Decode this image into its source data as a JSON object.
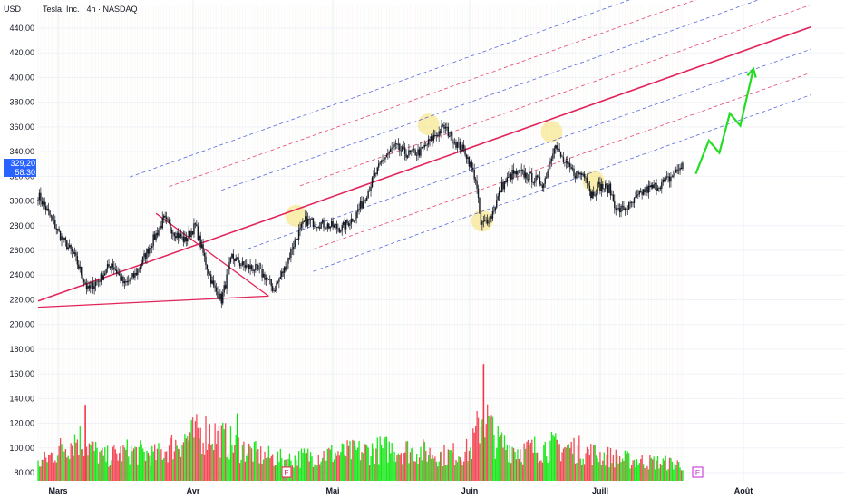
{
  "header": {
    "currency": "USD",
    "title": "Tesla, Inc. · 4h · NASDAQ"
  },
  "last_price": {
    "price": "329,20",
    "timer": "58:30",
    "color": "#2962ff"
  },
  "earnings_marker": "E",
  "colors": {
    "up": "#00e600",
    "down": "#f23645",
    "candle": "#131722",
    "trend": "#e2245a",
    "channel_red": "#e2245a",
    "channel_blue": "#3b4fd8",
    "forecast": "#22dd22",
    "highlight": "#f7e27a"
  },
  "chart_data": {
    "type": "candlestick",
    "x_ticks": [
      "Mars",
      "Avr",
      "Mai",
      "Juin",
      "Juill",
      "Août"
    ],
    "price_ticks": [
      "440,00",
      "420,00",
      "400,00",
      "380,00",
      "360,00",
      "340,00",
      "320,00",
      "300,00",
      "280,00",
      "260,00",
      "240,00",
      "220,00",
      "200,00",
      "180,00",
      "160,00",
      "140,00",
      "120,00",
      "100,00",
      "80,00"
    ],
    "ylim": [
      75,
      448
    ],
    "close_path": [
      {
        "t": 0,
        "v": 305
      },
      {
        "t": 8,
        "v": 290
      },
      {
        "t": 18,
        "v": 270
      },
      {
        "t": 28,
        "v": 255
      },
      {
        "t": 38,
        "v": 228
      },
      {
        "t": 48,
        "v": 238
      },
      {
        "t": 56,
        "v": 250
      },
      {
        "t": 66,
        "v": 232
      },
      {
        "t": 74,
        "v": 240
      },
      {
        "t": 86,
        "v": 265
      },
      {
        "t": 96,
        "v": 285
      },
      {
        "t": 104,
        "v": 275
      },
      {
        "t": 112,
        "v": 268
      },
      {
        "t": 120,
        "v": 280
      },
      {
        "t": 128,
        "v": 250
      },
      {
        "t": 134,
        "v": 230
      },
      {
        "t": 140,
        "v": 220
      },
      {
        "t": 148,
        "v": 255
      },
      {
        "t": 156,
        "v": 248
      },
      {
        "t": 166,
        "v": 245
      },
      {
        "t": 174,
        "v": 238
      },
      {
        "t": 180,
        "v": 228
      },
      {
        "t": 188,
        "v": 245
      },
      {
        "t": 196,
        "v": 268
      },
      {
        "t": 204,
        "v": 284
      },
      {
        "t": 214,
        "v": 282
      },
      {
        "t": 222,
        "v": 280
      },
      {
        "t": 232,
        "v": 278
      },
      {
        "t": 242,
        "v": 288
      },
      {
        "t": 248,
        "v": 300
      },
      {
        "t": 256,
        "v": 318
      },
      {
        "t": 264,
        "v": 335
      },
      {
        "t": 272,
        "v": 344
      },
      {
        "t": 282,
        "v": 338
      },
      {
        "t": 292,
        "v": 340
      },
      {
        "t": 302,
        "v": 352
      },
      {
        "t": 310,
        "v": 360
      },
      {
        "t": 318,
        "v": 348
      },
      {
        "t": 326,
        "v": 340
      },
      {
        "t": 334,
        "v": 318
      },
      {
        "t": 338,
        "v": 280
      },
      {
        "t": 346,
        "v": 288
      },
      {
        "t": 354,
        "v": 312
      },
      {
        "t": 362,
        "v": 322
      },
      {
        "t": 370,
        "v": 322
      },
      {
        "t": 378,
        "v": 318
      },
      {
        "t": 386,
        "v": 314
      },
      {
        "t": 394,
        "v": 346
      },
      {
        "t": 402,
        "v": 330
      },
      {
        "t": 410,
        "v": 322
      },
      {
        "t": 418,
        "v": 322
      },
      {
        "t": 422,
        "v": 305
      },
      {
        "t": 428,
        "v": 312
      },
      {
        "t": 436,
        "v": 310
      },
      {
        "t": 442,
        "v": 292
      },
      {
        "t": 452,
        "v": 296
      },
      {
        "t": 462,
        "v": 308
      },
      {
        "t": 472,
        "v": 312
      },
      {
        "t": 482,
        "v": 318
      },
      {
        "t": 492,
        "v": 329.2
      }
    ],
    "volume_profile": [
      {
        "t": 0,
        "v": 88
      },
      {
        "t": 30,
        "v": 112
      },
      {
        "t": 50,
        "v": 94
      },
      {
        "t": 70,
        "v": 100
      },
      {
        "t": 90,
        "v": 96
      },
      {
        "t": 110,
        "v": 110
      },
      {
        "t": 130,
        "v": 118
      },
      {
        "t": 150,
        "v": 105
      },
      {
        "t": 170,
        "v": 96
      },
      {
        "t": 190,
        "v": 92
      },
      {
        "t": 210,
        "v": 96
      },
      {
        "t": 230,
        "v": 98
      },
      {
        "t": 250,
        "v": 100
      },
      {
        "t": 270,
        "v": 102
      },
      {
        "t": 290,
        "v": 100
      },
      {
        "t": 310,
        "v": 96
      },
      {
        "t": 330,
        "v": 100
      },
      {
        "t": 340,
        "v": 135
      },
      {
        "t": 350,
        "v": 108
      },
      {
        "t": 370,
        "v": 100
      },
      {
        "t": 390,
        "v": 104
      },
      {
        "t": 410,
        "v": 102
      },
      {
        "t": 430,
        "v": 96
      },
      {
        "t": 450,
        "v": 92
      },
      {
        "t": 470,
        "v": 90
      },
      {
        "t": 492,
        "v": 88
      }
    ],
    "bar_count": 492,
    "trend_lines": [
      {
        "name": "channel-upper-line",
        "t1": 0,
        "v1": 219,
        "t2": 590,
        "v2": 441,
        "style": "solid",
        "color": "#e2245a"
      },
      {
        "name": "wedge-lower-line",
        "t1": 0,
        "v1": 214,
        "t2": 176,
        "v2": 223,
        "style": "solid",
        "color": "#e2245a"
      },
      {
        "name": "wedge-falling-line",
        "t1": 90,
        "v1": 290,
        "t2": 176,
        "v2": 223,
        "style": "solid",
        "color": "#e2245a"
      }
    ],
    "channel_lines": [
      {
        "offset": 74,
        "color": "#3b4fd8"
      },
      {
        "offset": 55,
        "color": "#e2245a"
      },
      {
        "offset": 37,
        "color": "#3b4fd8"
      },
      {
        "offset": 18,
        "color": "#e2245a"
      },
      {
        "offset": -18,
        "color": "#3b4fd8"
      },
      {
        "offset": -37,
        "color": "#e2245a"
      },
      {
        "offset": -55,
        "color": "#3b4fd8"
      }
    ],
    "highlights": [
      {
        "t": 197,
        "v": 288
      },
      {
        "t": 298,
        "v": 362
      },
      {
        "t": 339,
        "v": 284
      },
      {
        "t": 392,
        "v": 356
      },
      {
        "t": 424,
        "v": 316
      }
    ],
    "forecast": [
      {
        "t": 502,
        "v": 322
      },
      {
        "t": 512,
        "v": 349
      },
      {
        "t": 520,
        "v": 339
      },
      {
        "t": 528,
        "v": 371
      },
      {
        "t": 536,
        "v": 361
      },
      {
        "t": 546,
        "v": 407
      }
    ],
    "xlim": [
      0,
      590
    ]
  }
}
